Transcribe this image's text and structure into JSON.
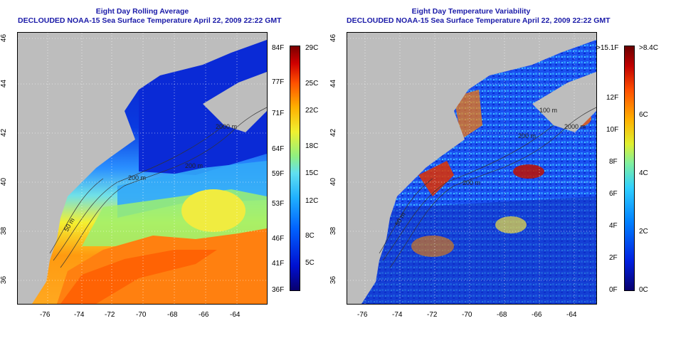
{
  "panels": [
    {
      "title_line1": "Eight Day Rolling Average",
      "title_line2": "DECLOUDED NOAA-15 Sea Surface Temperature April 22, 2009 22:22 GMT",
      "contour_labels": [
        "2000 m",
        "200 m",
        "200 m",
        "50 m"
      ],
      "colorbar": {
        "scheme": "sst",
        "left_labels": [
          "84F",
          "77F",
          "71F",
          "64F",
          "59F",
          "53F",
          "46F",
          "41F",
          "36F"
        ],
        "right_labels": [
          "29C",
          "25C",
          "22C",
          "18C",
          "15C",
          "12C",
          "8C",
          "5C"
        ]
      }
    },
    {
      "title_line1": "Eight Day Temperature Variability",
      "title_line2": "DECLOUDED NOAA-15 Sea Surface Temperature April 22, 2009 22:22 GMT",
      "contour_labels": [
        "100 m",
        "2000 m",
        "200 m",
        "200 m",
        "50 m"
      ],
      "colorbar": {
        "scheme": "variability",
        "left_labels": [
          ">15.1F",
          "12F",
          "10F",
          "8F",
          "6F",
          "4F",
          "2F",
          "0F"
        ],
        "right_labels": [
          ">8.4C",
          "6C",
          "4C",
          "2C",
          "0C"
        ]
      }
    }
  ],
  "x_ticks": [
    "-76",
    "-74",
    "-72",
    "-70",
    "-68",
    "-66",
    "-64"
  ],
  "y_ticks": [
    "46",
    "44",
    "42",
    "40",
    "38",
    "36"
  ],
  "colors": {
    "title": "#1a1aa8",
    "land": "#bdbdbd",
    "sst_scale": [
      "#08006e",
      "#0010d0",
      "#0060ff",
      "#20b0ff",
      "#60e0f0",
      "#90f080",
      "#f0f030",
      "#ffb000",
      "#ff5000",
      "#d00000",
      "#7a0000"
    ],
    "var_scale": [
      "#08006e",
      "#0020e0",
      "#0080ff",
      "#30d0ff",
      "#80f0a0",
      "#e0f030",
      "#ffb000",
      "#ff5000",
      "#c00000",
      "#6a0000"
    ]
  }
}
